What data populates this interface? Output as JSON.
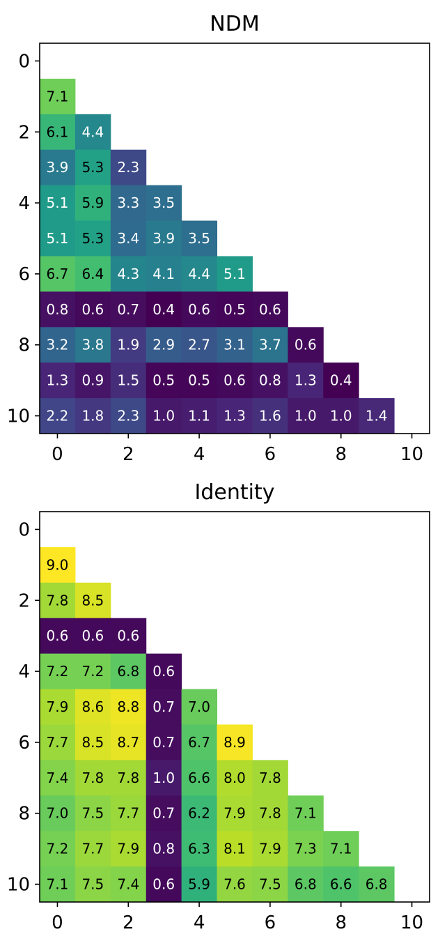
{
  "chart_data": [
    {
      "type": "heatmap",
      "title": "NDM",
      "x_ticks": [
        0,
        2,
        4,
        6,
        8,
        10
      ],
      "y_ticks": [
        0,
        2,
        4,
        6,
        8,
        10
      ],
      "xlim": [
        -0.5,
        10.5
      ],
      "ylim": [
        10.5,
        -0.5
      ],
      "colormap": "viridis",
      "color_range": [
        0.4,
        9.0
      ],
      "rows": [
        {
          "row": 1,
          "values": [
            7.1
          ]
        },
        {
          "row": 2,
          "values": [
            6.1,
            4.4
          ]
        },
        {
          "row": 3,
          "values": [
            3.9,
            5.3,
            2.3
          ]
        },
        {
          "row": 4,
          "values": [
            5.1,
            5.9,
            3.3,
            3.5
          ]
        },
        {
          "row": 5,
          "values": [
            5.1,
            5.3,
            3.4,
            3.9,
            3.5
          ]
        },
        {
          "row": 6,
          "values": [
            6.7,
            6.4,
            4.3,
            4.1,
            4.4,
            5.1
          ]
        },
        {
          "row": 7,
          "values": [
            0.8,
            0.6,
            0.7,
            0.4,
            0.6,
            0.5,
            0.6
          ]
        },
        {
          "row": 8,
          "values": [
            3.2,
            3.8,
            1.9,
            2.9,
            2.7,
            3.1,
            3.7,
            0.6
          ]
        },
        {
          "row": 9,
          "values": [
            1.3,
            0.9,
            1.5,
            0.5,
            0.5,
            0.6,
            0.8,
            1.3,
            0.4
          ]
        },
        {
          "row": 10,
          "values": [
            2.2,
            1.8,
            2.3,
            1.0,
            1.1,
            1.3,
            1.6,
            1.0,
            1.0,
            1.4
          ]
        }
      ]
    },
    {
      "type": "heatmap",
      "title": "Identity",
      "x_ticks": [
        0,
        2,
        4,
        6,
        8,
        10
      ],
      "y_ticks": [
        0,
        2,
        4,
        6,
        8,
        10
      ],
      "xlim": [
        -0.5,
        10.5
      ],
      "ylim": [
        10.5,
        -0.5
      ],
      "colormap": "viridis",
      "color_range": [
        0.4,
        9.0
      ],
      "rows": [
        {
          "row": 1,
          "values": [
            9.0
          ]
        },
        {
          "row": 2,
          "values": [
            7.8,
            8.5
          ]
        },
        {
          "row": 3,
          "values": [
            0.6,
            0.6,
            0.6
          ]
        },
        {
          "row": 4,
          "values": [
            7.2,
            7.2,
            6.8,
            0.6
          ]
        },
        {
          "row": 5,
          "values": [
            7.9,
            8.6,
            8.8,
            0.7,
            7.0
          ]
        },
        {
          "row": 6,
          "values": [
            7.7,
            8.5,
            8.7,
            0.7,
            6.7,
            8.9
          ]
        },
        {
          "row": 7,
          "values": [
            7.4,
            7.8,
            7.8,
            1.0,
            6.6,
            8.0,
            7.8
          ]
        },
        {
          "row": 8,
          "values": [
            7.0,
            7.5,
            7.7,
            0.7,
            6.2,
            7.9,
            7.8,
            7.1
          ]
        },
        {
          "row": 9,
          "values": [
            7.2,
            7.7,
            7.9,
            0.8,
            6.3,
            8.1,
            7.9,
            7.3,
            7.1
          ]
        },
        {
          "row": 10,
          "values": [
            7.1,
            7.5,
            7.4,
            0.6,
            5.9,
            7.6,
            7.5,
            6.8,
            6.6,
            6.8
          ]
        }
      ]
    }
  ]
}
